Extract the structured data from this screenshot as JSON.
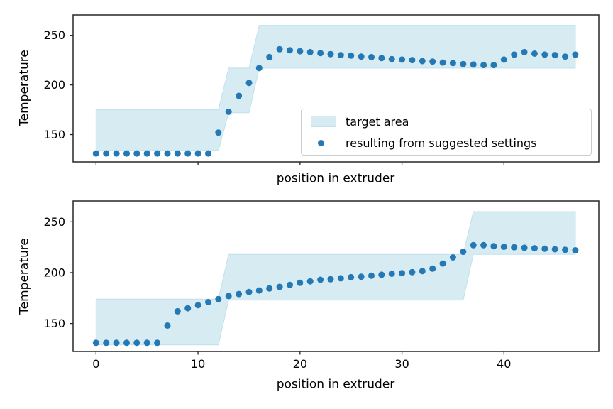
{
  "figure": {
    "background": "#ffffff",
    "legend": {
      "target_area_label": "target area",
      "points_label": "resulting from suggested settings"
    },
    "colors": {
      "point": "#2478b4",
      "band_fill": "#d7ebf3",
      "band_edge": "#c2e0ed",
      "axis": "#262626",
      "text": "#000000",
      "legend_border": "#cccccc"
    }
  },
  "chart_data": [
    {
      "type": "scatter",
      "title": "",
      "xlabel": "position in extruder",
      "ylabel": "Temperature",
      "xlim": [
        -2.25,
        49.3
      ],
      "ylim": [
        122.5,
        270.5
      ],
      "xticks": [
        0,
        10,
        20,
        30,
        40
      ],
      "show_xtick_labels": false,
      "yticks": [
        150,
        200,
        250
      ],
      "grid": false,
      "legend_position": "lower right",
      "series_name": "resulting from suggested settings",
      "x": [
        0,
        1,
        2,
        3,
        4,
        5,
        6,
        7,
        8,
        9,
        10,
        11,
        12,
        13,
        14,
        15,
        16,
        17,
        18,
        19,
        20,
        21,
        22,
        23,
        24,
        25,
        26,
        27,
        28,
        29,
        30,
        31,
        32,
        33,
        34,
        35,
        36,
        37,
        38,
        39,
        40,
        41,
        42,
        43,
        44,
        45,
        46,
        47
      ],
      "y": [
        131,
        131,
        131,
        131,
        131,
        131,
        131,
        131,
        131,
        131,
        131,
        131,
        152,
        173,
        189,
        202,
        217,
        228,
        236,
        235,
        234,
        233,
        232,
        231,
        230,
        229.5,
        228.5,
        228,
        227,
        226,
        225.5,
        225,
        224,
        223.5,
        222.5,
        222,
        221,
        220.5,
        220,
        220,
        225.5,
        230.5,
        233,
        231.5,
        230.5,
        230,
        228.5,
        230.5
      ],
      "band": {
        "name": "target area",
        "x": [
          0,
          12,
          13,
          15,
          16,
          47
        ],
        "lower": [
          134,
          134,
          172,
          172,
          217,
          217
        ],
        "upper": [
          175,
          175,
          217,
          217,
          260,
          260
        ]
      }
    },
    {
      "type": "scatter",
      "title": "",
      "xlabel": "position in extruder",
      "ylabel": "Temperature",
      "xlim": [
        -2.25,
        49.3
      ],
      "ylim": [
        122.5,
        270.5
      ],
      "xticks": [
        0,
        10,
        20,
        30,
        40
      ],
      "show_xtick_labels": true,
      "yticks": [
        150,
        200,
        250
      ],
      "grid": false,
      "legend_position": "none",
      "series_name": "resulting from suggested settings",
      "x": [
        0,
        1,
        2,
        3,
        4,
        5,
        6,
        7,
        8,
        9,
        10,
        11,
        12,
        13,
        14,
        15,
        16,
        17,
        18,
        19,
        20,
        21,
        22,
        23,
        24,
        25,
        26,
        27,
        28,
        29,
        30,
        31,
        32,
        33,
        34,
        35,
        36,
        37,
        38,
        39,
        40,
        41,
        42,
        43,
        44,
        45,
        46,
        47
      ],
      "y": [
        131,
        131,
        131,
        131,
        131,
        131,
        131,
        148,
        162,
        165,
        168,
        171,
        174,
        177,
        179,
        181,
        182.5,
        184.5,
        186,
        188,
        190,
        191.5,
        193,
        193.5,
        194.5,
        195.5,
        196,
        197,
        198,
        199,
        199.5,
        200.5,
        201.5,
        204,
        209,
        215,
        220.5,
        227,
        227,
        226,
        225.5,
        225,
        224.5,
        224,
        223.5,
        223,
        222.5,
        222
      ],
      "band": {
        "name": "target area",
        "x": [
          0,
          12,
          13,
          36,
          37,
          47
        ],
        "lower": [
          129,
          129,
          173,
          173,
          218,
          218
        ],
        "upper": [
          174,
          174,
          218,
          218,
          260,
          260
        ]
      }
    }
  ]
}
